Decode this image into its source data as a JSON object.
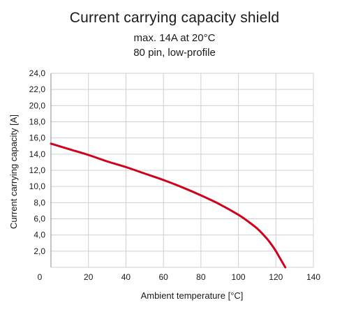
{
  "chart_data": {
    "type": "line",
    "title": "Current carrying capacity shield",
    "subtitle": [
      "max. 14A at 20°C",
      "80 pin, low-profile"
    ],
    "xlabel": "Ambient temperature [°C]",
    "ylabel": "Current carrying capacity [A]",
    "xlim": [
      0,
      140
    ],
    "ylim": [
      0,
      24
    ],
    "x_ticks": [
      "0",
      "20",
      "40",
      "60",
      "80",
      "100",
      "120",
      "140"
    ],
    "y_ticks": [
      "2,0",
      "4,0",
      "6,0",
      "8,0",
      "10,0",
      "12,0",
      "14,0",
      "16,0",
      "18,0",
      "20,0",
      "22,0",
      "24,0"
    ],
    "x_tick_values": [
      0,
      20,
      40,
      60,
      80,
      100,
      120,
      140
    ],
    "y_tick_values": [
      2,
      4,
      6,
      8,
      10,
      12,
      14,
      16,
      18,
      20,
      22,
      24
    ],
    "grid": true,
    "line_color": "#d0021b",
    "series": [
      {
        "x": [
          0,
          10,
          20,
          30,
          40,
          50,
          60,
          70,
          80,
          90,
          100,
          105,
          110,
          115,
          118,
          120,
          122,
          124,
          125
        ],
        "values": [
          15.3,
          14.6,
          13.9,
          13.1,
          12.4,
          11.6,
          10.8,
          9.9,
          8.9,
          7.8,
          6.5,
          5.7,
          4.8,
          3.6,
          2.7,
          2.0,
          1.2,
          0.4,
          0.0
        ]
      }
    ]
  }
}
